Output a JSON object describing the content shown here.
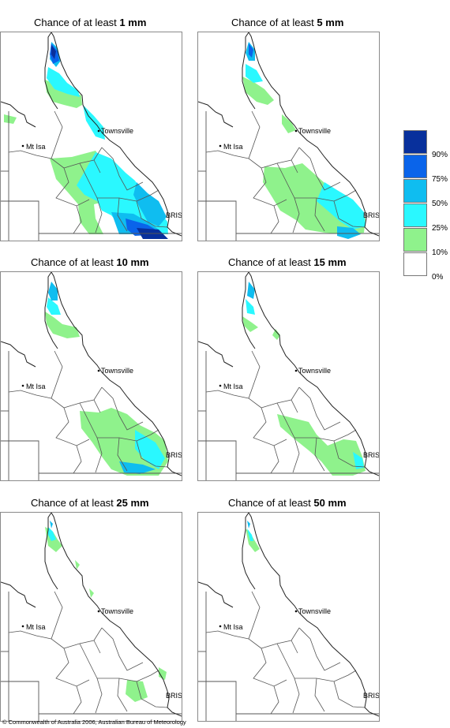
{
  "title_prefix": "Chance of at least",
  "panels": [
    {
      "id": "1mm",
      "threshold": "1 mm"
    },
    {
      "id": "5mm",
      "threshold": "5 mm"
    },
    {
      "id": "10mm",
      "threshold": "10 mm"
    },
    {
      "id": "15mm",
      "threshold": "15 mm"
    },
    {
      "id": "25mm",
      "threshold": "25 mm"
    },
    {
      "id": "50mm",
      "threshold": "50 mm"
    }
  ],
  "places": {
    "townsville": "Townsville",
    "mt_isa": "Mt Isa",
    "brisbane": "BRIS"
  },
  "legend": {
    "colors": [
      "#08309c",
      "#0a64ea",
      "#0fbdf0",
      "#2af8ff",
      "#8ff28c",
      "#ffffff"
    ],
    "labels": [
      "90%",
      "75%",
      "50%",
      "25%",
      "10%",
      "0%"
    ]
  },
  "footer": "© Commonwealth of Australia 2006, Australian Bureau of Meteorology"
}
